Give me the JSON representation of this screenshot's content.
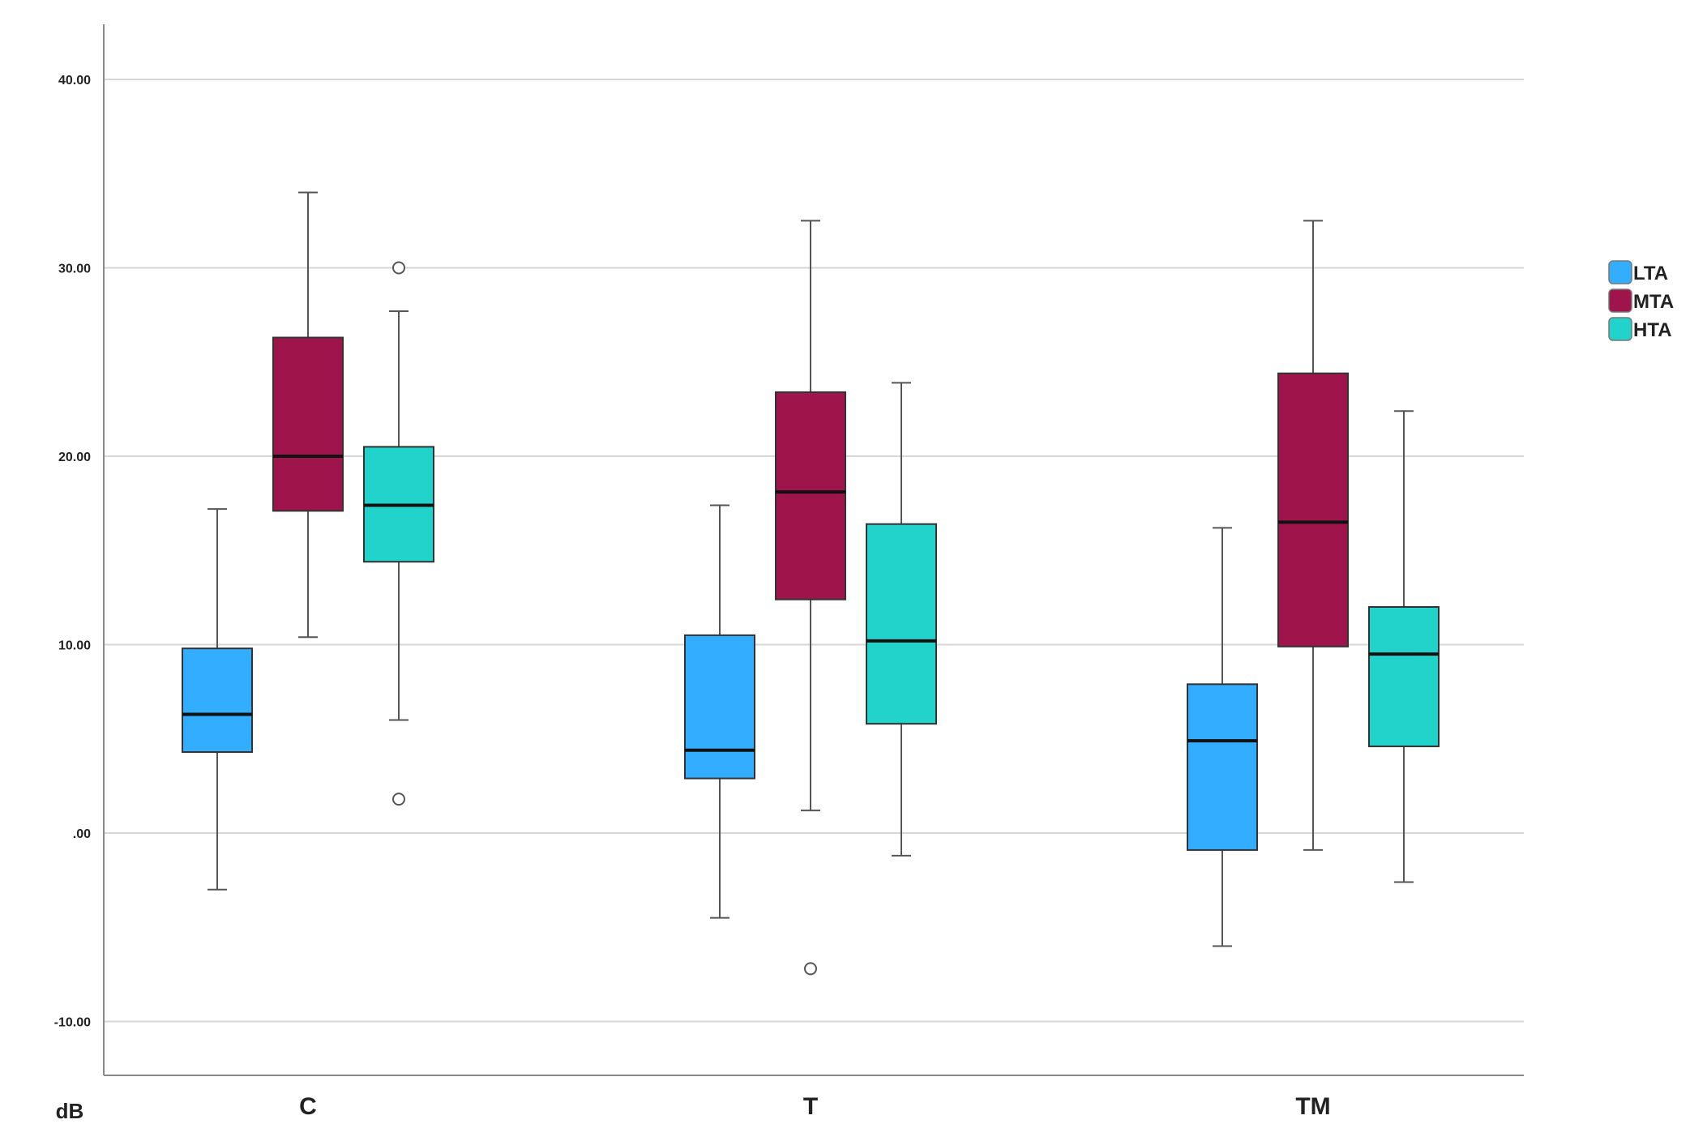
{
  "chart_data": {
    "type": "boxplot",
    "title": "",
    "xlabel": "",
    "ylabel": "dB",
    "ylim": [
      -13,
      43
    ],
    "y_ticks": [
      40,
      30,
      20,
      10,
      0,
      -10
    ],
    "y_tick_labels": [
      "40.00",
      "30.00",
      "20.00",
      "10.00",
      ".00",
      "-10.00"
    ],
    "grid": true,
    "legend_position": "right",
    "categories": [
      "C",
      "T",
      "TM"
    ],
    "series": [
      {
        "name": "LTA",
        "color": "#33adff",
        "boxes": [
          {
            "whisker_low": -3.0,
            "q1": 4.3,
            "median": 6.3,
            "q3": 9.8,
            "whisker_high": 17.2,
            "outliers": []
          },
          {
            "whisker_low": -4.5,
            "q1": 2.9,
            "median": 4.4,
            "q3": 10.5,
            "whisker_high": 17.4,
            "outliers": []
          },
          {
            "whisker_low": -6.0,
            "q1": -0.9,
            "median": 4.9,
            "q3": 7.9,
            "whisker_high": 16.2,
            "outliers": []
          }
        ]
      },
      {
        "name": "MTA",
        "color": "#a0144c",
        "boxes": [
          {
            "whisker_low": 10.4,
            "q1": 17.1,
            "median": 20.0,
            "q3": 26.3,
            "whisker_high": 34.0,
            "outliers": []
          },
          {
            "whisker_low": 1.2,
            "q1": 12.4,
            "median": 18.1,
            "q3": 23.4,
            "whisker_high": 32.5,
            "outliers": [
              -7.2
            ]
          },
          {
            "whisker_low": -0.9,
            "q1": 9.9,
            "median": 16.5,
            "q3": 24.4,
            "whisker_high": 32.5,
            "outliers": []
          }
        ]
      },
      {
        "name": "HTA",
        "color": "#22d3cc",
        "boxes": [
          {
            "whisker_low": 6.0,
            "q1": 14.4,
            "median": 17.4,
            "q3": 20.5,
            "whisker_high": 27.7,
            "outliers": [
              30.0,
              1.8
            ]
          },
          {
            "whisker_low": -1.2,
            "q1": 5.8,
            "median": 10.2,
            "q3": 16.4,
            "whisker_high": 23.9,
            "outliers": []
          },
          {
            "whisker_low": -2.6,
            "q1": 4.6,
            "median": 9.5,
            "q3": 12.0,
            "whisker_high": 22.4,
            "outliers": []
          }
        ]
      }
    ]
  }
}
